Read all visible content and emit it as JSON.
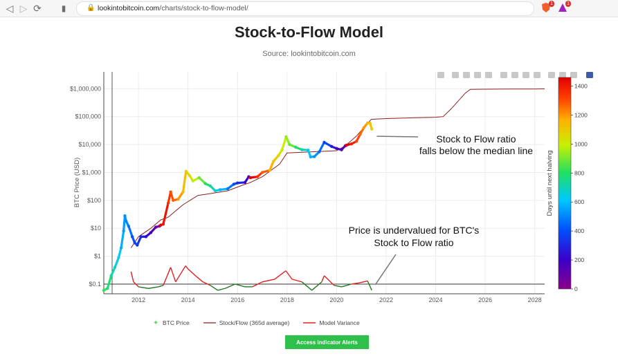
{
  "browser": {
    "url_host": "lookintobitcoin.com",
    "url_path": "/charts/stock-to-flow-model/",
    "extension_badge_1": "1",
    "extension_badge_2": "1"
  },
  "page": {
    "title": "Stock-to-Flow Model",
    "subtitle": "Source: lookintobitcoin.com",
    "button_label": "Access Indicator Alerts"
  },
  "colors": {
    "accent_button": "#2ec04a",
    "sf_line": "#8b1e1e",
    "variance_red": "#e02020",
    "variance_green": "#1f7a1f"
  },
  "chart_data": {
    "type": "scatter",
    "title": "Stock-to-Flow Model",
    "subtitle": "Source: lookintobitcoin.com",
    "ylabel": "BTC Price (USD)",
    "y_scale": "log",
    "ylim": [
      0.045,
      4000000
    ],
    "xlim": [
      2010.6,
      2028.4
    ],
    "x_ticks": [
      "2012",
      "2014",
      "2016",
      "2018",
      "2020",
      "2022",
      "2024",
      "2026",
      "2028"
    ],
    "y_ticks": [
      {
        "value": 0.1,
        "label": "$0.1"
      },
      {
        "value": 1,
        "label": "$1"
      },
      {
        "value": 10,
        "label": "$10"
      },
      {
        "value": 100,
        "label": "$100"
      },
      {
        "value": 1000,
        "label": "$1,000"
      },
      {
        "value": 10000,
        "label": "$10,000"
      },
      {
        "value": 100000,
        "label": "$100,000"
      },
      {
        "value": 1000000,
        "label": "$1,000,000"
      }
    ],
    "legend": [
      "BTC Price",
      "Stock/Flow (365d average)",
      "Model Variance"
    ],
    "legend_placement": "bottom",
    "colorbar": {
      "label": "Days until next halving",
      "min": 0,
      "max": 1460,
      "ticks": [
        0,
        200,
        400,
        600,
        800,
        1000,
        1200,
        1400
      ]
    },
    "series": [
      {
        "name": "BTC Price",
        "color_by": "days until next halving",
        "points": [
          {
            "x": 2010.6,
            "y": 0.06,
            "d": 820
          },
          {
            "x": 2010.75,
            "y": 0.07,
            "d": 780
          },
          {
            "x": 2010.9,
            "y": 0.2,
            "d": 720
          },
          {
            "x": 2011.05,
            "y": 0.4,
            "d": 660
          },
          {
            "x": 2011.2,
            "y": 0.9,
            "d": 620
          },
          {
            "x": 2011.3,
            "y": 2,
            "d": 570
          },
          {
            "x": 2011.4,
            "y": 8,
            "d": 540
          },
          {
            "x": 2011.45,
            "y": 28,
            "d": 520
          },
          {
            "x": 2011.5,
            "y": 18,
            "d": 500
          },
          {
            "x": 2011.6,
            "y": 12,
            "d": 470
          },
          {
            "x": 2011.75,
            "y": 5,
            "d": 410
          },
          {
            "x": 2011.85,
            "y": 3,
            "d": 380
          },
          {
            "x": 2011.95,
            "y": 2.5,
            "d": 340
          },
          {
            "x": 2012.1,
            "y": 5,
            "d": 300
          },
          {
            "x": 2012.3,
            "y": 5,
            "d": 230
          },
          {
            "x": 2012.5,
            "y": 7,
            "d": 160
          },
          {
            "x": 2012.7,
            "y": 11,
            "d": 80
          },
          {
            "x": 2012.85,
            "y": 12,
            "d": 20
          },
          {
            "x": 2012.9,
            "y": 13,
            "d": 1440
          },
          {
            "x": 2013.0,
            "y": 14,
            "d": 1410
          },
          {
            "x": 2013.2,
            "y": 80,
            "d": 1340
          },
          {
            "x": 2013.3,
            "y": 200,
            "d": 1300
          },
          {
            "x": 2013.4,
            "y": 100,
            "d": 1270
          },
          {
            "x": 2013.6,
            "y": 110,
            "d": 1200
          },
          {
            "x": 2013.8,
            "y": 200,
            "d": 1130
          },
          {
            "x": 2013.92,
            "y": 1100,
            "d": 1080
          },
          {
            "x": 2014.05,
            "y": 800,
            "d": 1040
          },
          {
            "x": 2014.2,
            "y": 500,
            "d": 980
          },
          {
            "x": 2014.45,
            "y": 650,
            "d": 890
          },
          {
            "x": 2014.7,
            "y": 400,
            "d": 800
          },
          {
            "x": 2014.9,
            "y": 330,
            "d": 720
          },
          {
            "x": 2015.1,
            "y": 220,
            "d": 650
          },
          {
            "x": 2015.3,
            "y": 240,
            "d": 580
          },
          {
            "x": 2015.6,
            "y": 260,
            "d": 470
          },
          {
            "x": 2015.85,
            "y": 380,
            "d": 380
          },
          {
            "x": 2016.0,
            "y": 420,
            "d": 320
          },
          {
            "x": 2016.3,
            "y": 440,
            "d": 210
          },
          {
            "x": 2016.45,
            "y": 700,
            "d": 160
          },
          {
            "x": 2016.52,
            "y": 650,
            "d": 1450
          },
          {
            "x": 2016.8,
            "y": 700,
            "d": 1350
          },
          {
            "x": 2017.0,
            "y": 1000,
            "d": 1280
          },
          {
            "x": 2017.3,
            "y": 1200,
            "d": 1170
          },
          {
            "x": 2017.45,
            "y": 2500,
            "d": 1110
          },
          {
            "x": 2017.65,
            "y": 4000,
            "d": 1040
          },
          {
            "x": 2017.8,
            "y": 6500,
            "d": 990
          },
          {
            "x": 2017.96,
            "y": 19000,
            "d": 930
          },
          {
            "x": 2018.1,
            "y": 10000,
            "d": 880
          },
          {
            "x": 2018.35,
            "y": 8000,
            "d": 790
          },
          {
            "x": 2018.6,
            "y": 6500,
            "d": 700
          },
          {
            "x": 2018.85,
            "y": 6300,
            "d": 610
          },
          {
            "x": 2018.95,
            "y": 3600,
            "d": 570
          },
          {
            "x": 2019.1,
            "y": 3700,
            "d": 520
          },
          {
            "x": 2019.3,
            "y": 5500,
            "d": 450
          },
          {
            "x": 2019.5,
            "y": 12000,
            "d": 370
          },
          {
            "x": 2019.8,
            "y": 8500,
            "d": 260
          },
          {
            "x": 2020.0,
            "y": 7200,
            "d": 190
          },
          {
            "x": 2020.2,
            "y": 6500,
            "d": 120
          },
          {
            "x": 2020.35,
            "y": 9000,
            "d": 60
          },
          {
            "x": 2020.4,
            "y": 9500,
            "d": 1450
          },
          {
            "x": 2020.6,
            "y": 10500,
            "d": 1380
          },
          {
            "x": 2020.8,
            "y": 13000,
            "d": 1310
          },
          {
            "x": 2020.95,
            "y": 23000,
            "d": 1260
          },
          {
            "x": 2021.1,
            "y": 40000,
            "d": 1200
          },
          {
            "x": 2021.25,
            "y": 59000,
            "d": 1140
          },
          {
            "x": 2021.35,
            "y": 58000,
            "d": 1110
          },
          {
            "x": 2021.42,
            "y": 36000,
            "d": 1080
          }
        ]
      },
      {
        "name": "Stock/Flow (365d average)",
        "x": [
          2011.7,
          2012.0,
          2012.5,
          2012.9,
          2013.2,
          2013.8,
          2014.4,
          2015.0,
          2015.6,
          2016.2,
          2016.5,
          2017.0,
          2017.7,
          2018.0,
          2019.0,
          2020.0,
          2020.35,
          2020.8,
          2021.4,
          2022.0,
          2023.0,
          2024.0,
          2024.3,
          2024.6,
          2025.2,
          2025.4,
          2026.0,
          2027.0,
          2028.0,
          2028.4
        ],
        "y": [
          2,
          5,
          10,
          20,
          25,
          70,
          150,
          180,
          220,
          350,
          430,
          700,
          2000,
          5000,
          5500,
          6000,
          9000,
          20000,
          80000,
          85000,
          90000,
          95000,
          100000,
          180000,
          700000,
          950000,
          960000,
          970000,
          980000,
          990000
        ]
      },
      {
        "name": "Model Variance",
        "color_rule": "red when price is above the model, green when below",
        "x": [
          2011.7,
          2011.8,
          2012.0,
          2012.4,
          2012.8,
          2013.0,
          2013.3,
          2013.5,
          2013.9,
          2014.0,
          2014.3,
          2014.6,
          2014.9,
          2015.2,
          2015.5,
          2015.9,
          2016.3,
          2016.6,
          2017.0,
          2017.5,
          2017.95,
          2018.2,
          2018.6,
          2019.0,
          2019.4,
          2019.5,
          2019.9,
          2020.2,
          2020.6,
          2020.9,
          2021.25,
          2021.42
        ],
        "y": [
          0.28,
          0.12,
          0.08,
          0.07,
          0.08,
          0.09,
          0.4,
          0.12,
          0.45,
          0.35,
          0.2,
          0.12,
          0.09,
          0.06,
          0.07,
          0.1,
          0.08,
          0.08,
          0.12,
          0.15,
          0.3,
          0.15,
          0.12,
          0.06,
          0.12,
          0.2,
          0.09,
          0.08,
          0.1,
          0.11,
          0.13,
          0.06
        ]
      },
      {
        "name": "Median line",
        "y": 0.1
      }
    ],
    "annotations": [
      {
        "text_line1": "Stock to Flow ratio",
        "text_line2": "falls below the median line",
        "x": 2021.4,
        "y": 35000
      },
      {
        "text_line1": "Price is undervalued for BTC's",
        "text_line2": "Stock to Flow ratio",
        "x": 2021.45,
        "y": 0.06
      }
    ]
  }
}
